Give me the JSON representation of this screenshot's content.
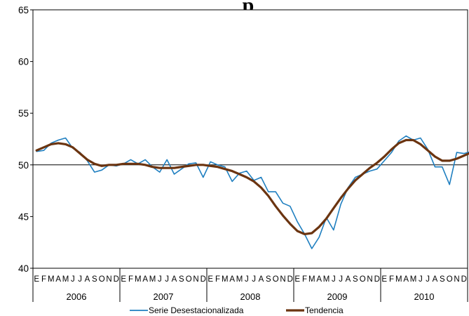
{
  "chart_data": {
    "type": "line",
    "title": "p",
    "ylim": [
      40,
      65
    ],
    "yticks": [
      40,
      45,
      50,
      55,
      60,
      65
    ],
    "reference_line": 50,
    "month_labels": [
      "E",
      "F",
      "M",
      "A",
      "M",
      "J",
      "J",
      "A",
      "S",
      "O",
      "N",
      "D"
    ],
    "years": [
      "2006",
      "2007",
      "2008",
      "2009",
      "2010"
    ],
    "legend_position": "bottom",
    "series": [
      {
        "name": "Serie Desestacionalizada",
        "color": "#1f7fc0",
        "values": [
          51.3,
          51.4,
          52.1,
          52.4,
          52.6,
          51.6,
          51.2,
          50.4,
          49.3,
          49.5,
          50.0,
          49.9,
          50.1,
          50.5,
          50.1,
          50.5,
          49.8,
          49.3,
          50.5,
          49.1,
          49.6,
          50.1,
          50.2,
          48.8,
          50.3,
          50.0,
          49.8,
          48.4,
          49.2,
          49.4,
          48.5,
          48.8,
          47.4,
          47.4,
          46.3,
          46.0,
          44.5,
          43.3,
          41.9,
          43.0,
          44.9,
          43.7,
          46.2,
          47.8,
          48.8,
          49.1,
          49.4,
          49.6,
          50.4,
          51.2,
          52.3,
          52.8,
          52.4,
          52.6,
          51.5,
          49.8,
          49.8,
          48.1,
          51.2,
          51.1,
          51.3
        ]
      },
      {
        "name": "Tendencia",
        "color": "#6b3410",
        "values": [
          51.4,
          51.7,
          52.0,
          52.1,
          52.0,
          51.7,
          51.1,
          50.5,
          50.1,
          49.9,
          50.0,
          50.0,
          50.1,
          50.1,
          50.1,
          50.0,
          49.8,
          49.7,
          49.7,
          49.7,
          49.8,
          49.9,
          50.0,
          50.0,
          49.9,
          49.8,
          49.6,
          49.4,
          49.1,
          48.8,
          48.4,
          47.8,
          47.0,
          46.0,
          45.1,
          44.3,
          43.6,
          43.3,
          43.4,
          44.0,
          44.8,
          45.8,
          46.8,
          47.7,
          48.5,
          49.1,
          49.7,
          50.2,
          50.8,
          51.5,
          52.1,
          52.4,
          52.4,
          52.0,
          51.4,
          50.8,
          50.4,
          50.4,
          50.6,
          50.9,
          51.2
        ]
      }
    ]
  }
}
